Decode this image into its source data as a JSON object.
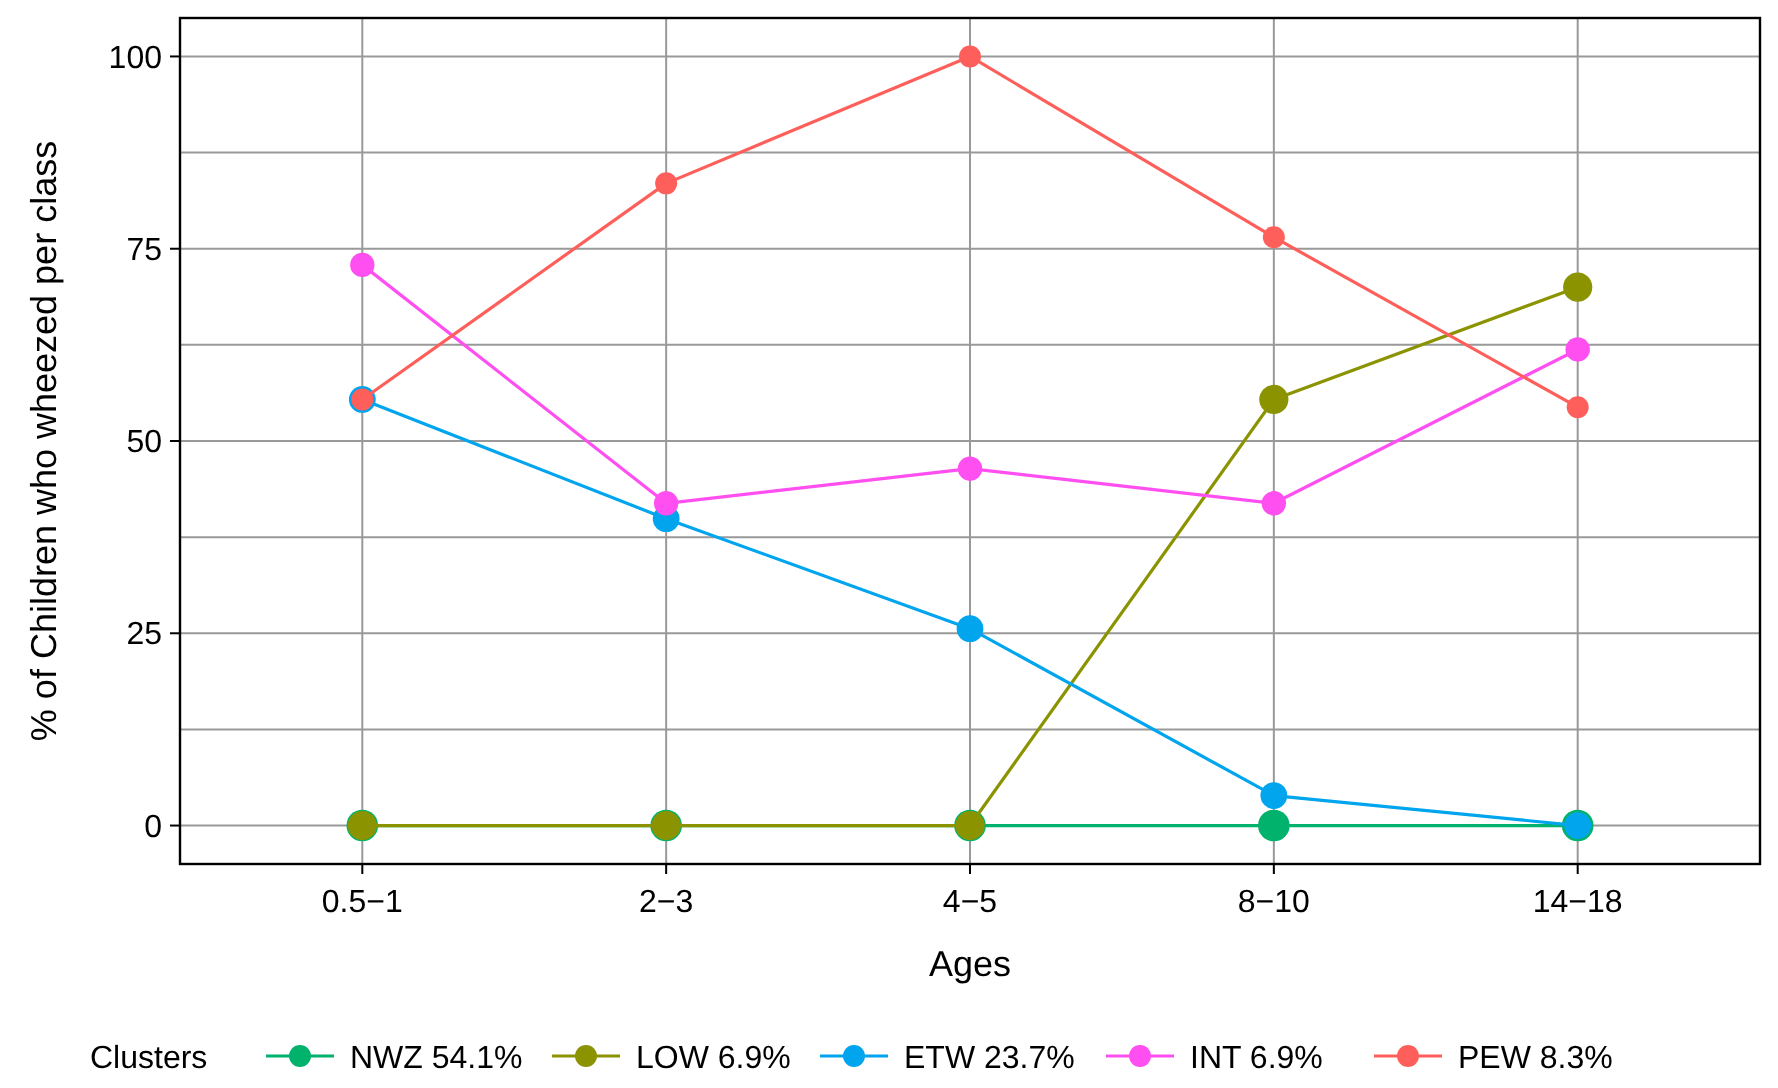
{
  "chart_data": {
    "type": "line",
    "xlabel": "Ages",
    "ylabel": "% of Children who wheezed per class",
    "legend_title": "Clusters",
    "legend": "bottom",
    "grid": true,
    "marker": "circle",
    "line_style": "solid",
    "categories": [
      "0.5−1",
      "2−3",
      "4−5",
      "8−10",
      "14−18"
    ],
    "ylim": [
      -5,
      105
    ],
    "yticks": [
      0,
      {
        "value": 12.5,
        "label": null
      },
      25,
      {
        "value": 37.5,
        "label": null
      },
      50,
      {
        "value": 62.5,
        "label": null
      },
      75,
      {
        "value": 87.5,
        "label": null
      },
      100
    ],
    "series": [
      {
        "name": "NWZ 54.1%",
        "color": "#00b26b",
        "values": [
          0,
          0,
          0,
          0,
          0
        ]
      },
      {
        "name": "LOW 6.9%",
        "color": "#8b9400",
        "values": [
          0,
          0,
          0,
          55.4,
          70
        ]
      },
      {
        "name": "ETW 23.7%",
        "color": "#00a5ee",
        "values": [
          55.4,
          39.9,
          25.6,
          3.9,
          0
        ]
      },
      {
        "name": "INT 6.9%",
        "color": "#ff4ff0",
        "values": [
          72.9,
          41.9,
          46.4,
          41.9,
          61.9
        ]
      },
      {
        "name": "PEW 8.3%",
        "color": "#ff5f5a",
        "values": [
          55.4,
          83.5,
          100,
          76.5,
          54.4
        ]
      }
    ]
  }
}
